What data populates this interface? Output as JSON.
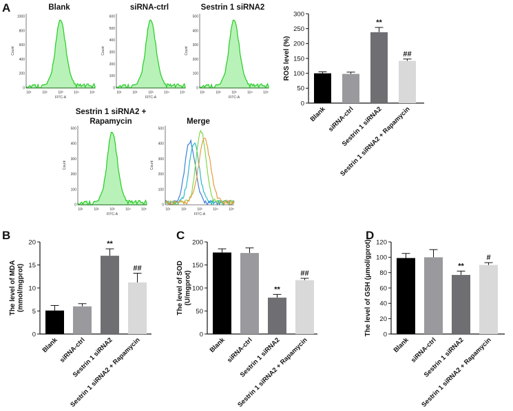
{
  "colors": {
    "histogram_fill": "#b8f2b8",
    "histogram_line": "#22cc22",
    "merge_blue": "#3a7fd9",
    "merge_cyan": "#29b8c8",
    "merge_green": "#7fd94a",
    "merge_orange": "#e89a3c",
    "bars": [
      "#000000",
      "#9a9a9e",
      "#6f6f73",
      "#d9d9d9"
    ]
  },
  "panel_a": {
    "letter": "A",
    "flow_panels": [
      {
        "title_lines": [
          "Blank"
        ],
        "xlabel": "FITC-A",
        "ylabel": "Count",
        "yticks": [
          "1000",
          "800",
          "600",
          "400",
          "200",
          "0"
        ],
        "xticks": [
          "10¹",
          "10²",
          "10³",
          "10⁴",
          "10⁵"
        ]
      },
      {
        "title_lines": [
          "siRNA-ctrl"
        ],
        "xlabel": "FITC-A",
        "ylabel": "Count",
        "yticks": [
          "600",
          "500",
          "400",
          "300",
          "200",
          "100",
          "0"
        ],
        "xticks": [
          "10¹",
          "10²",
          "10³",
          "10⁴",
          "10⁵"
        ]
      },
      {
        "title_lines": [
          "Sestrin 1 siRNA2"
        ],
        "xlabel": "FITC-A",
        "ylabel": "Count",
        "yticks": [
          "500",
          "400",
          "300",
          "200",
          "100",
          "0"
        ],
        "xticks": [
          "10¹",
          "10²",
          "10³",
          "10⁴",
          "10⁵"
        ]
      },
      {
        "title_lines": [
          "Sestrin 1 siRNA2 +",
          "Rapamycin"
        ],
        "xlabel": "FITC-A",
        "ylabel": "Count",
        "yticks": [
          "500",
          "400",
          "300",
          "200",
          "100",
          "0"
        ],
        "xticks": [
          "10¹",
          "10²",
          "10³",
          "10⁴",
          "10⁵"
        ]
      },
      {
        "title_lines": [
          "Merge"
        ],
        "xlabel": "FITC-A",
        "ylabel": "Count",
        "yticks": [
          "500",
          "400",
          "300",
          "200",
          "100",
          "0"
        ],
        "xticks": [
          "10¹",
          "10²",
          "10³",
          "10⁴",
          "10⁵"
        ]
      }
    ]
  },
  "chart_data": [
    {
      "type": "bar",
      "panel": "A",
      "categories": [
        "Blank",
        "siRNA-ctrl",
        "Sestrin 1 siRNA2",
        "Sestrin 1 siRNA2 + Rapamycin"
      ],
      "values": [
        100,
        98,
        238,
        142
      ],
      "errors": [
        5,
        6,
        16,
        6
      ],
      "annotations": [
        "",
        "",
        "**",
        "##"
      ],
      "ylabel": "ROS level (%)",
      "ylim": [
        0,
        300
      ],
      "yticks": [
        0,
        50,
        100,
        150,
        200,
        250,
        300
      ]
    },
    {
      "type": "bar",
      "panel": "B",
      "categories": [
        "Blank",
        "siRNA-ctrl",
        "Sestrin 1 siRNA2",
        "Sestrin 1 siRNA2 + Rapamycin"
      ],
      "values": [
        5.1,
        6.0,
        17.0,
        11.2
      ],
      "errors": [
        1.1,
        0.6,
        1.5,
        2.0
      ],
      "annotations": [
        "",
        "",
        "**",
        "##"
      ],
      "ylabel": "The level of MDA (mmol/mgprot)",
      "ylim": [
        0,
        20
      ],
      "yticks": [
        0,
        5,
        10,
        15,
        20
      ]
    },
    {
      "type": "bar",
      "panel": "C",
      "categories": [
        "Blank",
        "siRNA-ctrl",
        "Sestrin 1 siRNA2",
        "Sestrin 1 siRNA2 + Rapamycin"
      ],
      "values": [
        177,
        176,
        79,
        117
      ],
      "errors": [
        8,
        11,
        7,
        4
      ],
      "annotations": [
        "",
        "",
        "**",
        "##"
      ],
      "ylabel": "The level of SOD (U/mgprot)",
      "ylim": [
        0,
        200
      ],
      "yticks": [
        0,
        50,
        100,
        150,
        200
      ]
    },
    {
      "type": "bar",
      "panel": "D",
      "categories": [
        "Blank",
        "siRNA-ctrl",
        "Sestrin 1 siRNA2",
        "Sestrin 1 siRNA2 + Rapamycin"
      ],
      "values": [
        99,
        100,
        77,
        90
      ],
      "errors": [
        6,
        10,
        5,
        3
      ],
      "annotations": [
        "",
        "",
        "**",
        "#"
      ],
      "ylabel": "The level of GSH (μmol/gprot)",
      "ylim": [
        0,
        120
      ],
      "yticks": [
        0,
        20,
        40,
        60,
        80,
        100,
        120
      ]
    }
  ]
}
